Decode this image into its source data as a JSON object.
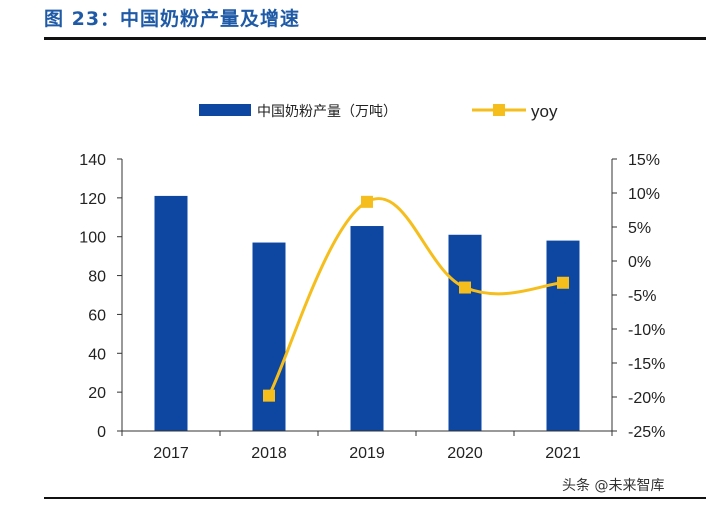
{
  "figure_title": "图 23：中国奶粉产量及增速",
  "watermark": "头条 @未来智库",
  "colors": {
    "bar": "#0d47a1",
    "line": "#f5be1d",
    "title": "#1f5aa6"
  },
  "chart_data": {
    "type": "bar",
    "title": "中国奶粉产量及增速",
    "categories": [
      "2017",
      "2018",
      "2019",
      "2020",
      "2021"
    ],
    "series": [
      {
        "name": "中国奶粉产量（万吨）",
        "type": "bar",
        "axis": "left",
        "values": [
          121,
          97,
          105.5,
          101,
          98
        ]
      },
      {
        "name": "yoy",
        "type": "line",
        "axis": "right",
        "values": [
          null,
          -19.8,
          8.7,
          -3.9,
          -3.2
        ]
      }
    ],
    "y_left": {
      "min": 0,
      "max": 140,
      "ticks": [
        "0",
        "20",
        "40",
        "60",
        "80",
        "100",
        "120",
        "140"
      ]
    },
    "y_right": {
      "min": -25,
      "max": 15,
      "ticks": [
        "-25%",
        "-20%",
        "-15%",
        "-10%",
        "-5%",
        "0%",
        "5%",
        "10%",
        "15%"
      ]
    },
    "legend": [
      "中国奶粉产量（万吨）",
      "yoy"
    ]
  }
}
